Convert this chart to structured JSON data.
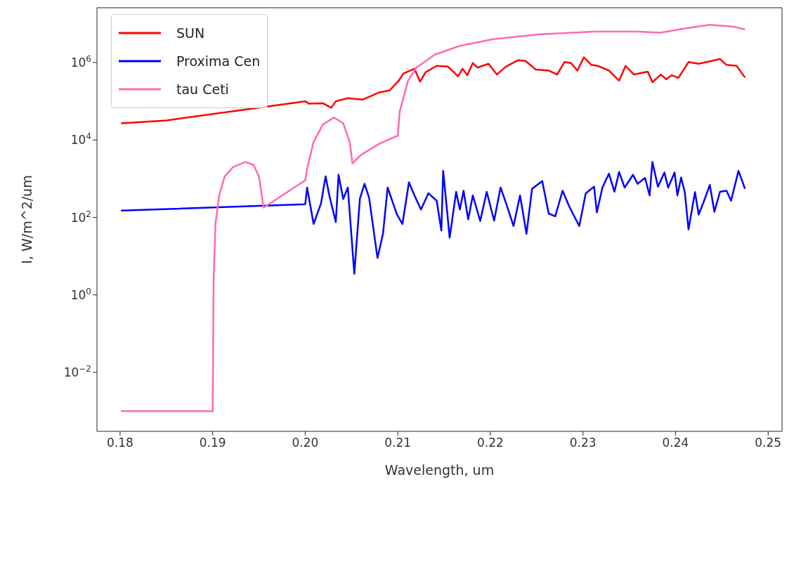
{
  "chart_data": {
    "type": "line",
    "xlabel": "Wavelength, um",
    "ylabel": "I, W/m^2/um",
    "log": "y",
    "legend": "top left",
    "grid": false,
    "marker": "none",
    "line_style": "solid",
    "xlim": [
      0.1775,
      0.2515
    ],
    "ylim": [
      0.0003,
      26000000
    ],
    "xticks": [
      {
        "value": 0.18,
        "label": "0.18"
      },
      {
        "value": 0.19,
        "label": "0.19"
      },
      {
        "value": 0.2,
        "label": "0.20"
      },
      {
        "value": 0.21,
        "label": "0.21"
      },
      {
        "value": 0.22,
        "label": "0.22"
      },
      {
        "value": 0.23,
        "label": "0.23"
      },
      {
        "value": 0.24,
        "label": "0.24"
      },
      {
        "value": 0.25,
        "label": "0.25"
      }
    ],
    "yticks": [
      {
        "value": 0.01,
        "label": "10$^{−2}$"
      },
      {
        "value": 1,
        "label": "10$^{0}$"
      },
      {
        "value": 100,
        "label": "10$^{2}$"
      },
      {
        "value": 10000,
        "label": "10$^{4}$"
      },
      {
        "value": 1000000,
        "label": "10$^{6}$"
      }
    ],
    "series": [
      {
        "name": "SUN",
        "color": "#ff0000",
        "x": [
          0.1801,
          0.185,
          0.2,
          0.2004,
          0.2019,
          0.2028,
          0.2033,
          0.2046,
          0.2062,
          0.208,
          0.2091,
          0.2101,
          0.2106,
          0.2118,
          0.2124,
          0.213,
          0.2142,
          0.2154,
          0.2165,
          0.217,
          0.2175,
          0.2181,
          0.2186,
          0.2198,
          0.2207,
          0.2217,
          0.223,
          0.2238,
          0.2249,
          0.2263,
          0.2272,
          0.228,
          0.2287,
          0.2294,
          0.2301,
          0.2309,
          0.2316,
          0.2328,
          0.2339,
          0.2346,
          0.2355,
          0.237,
          0.2375,
          0.2384,
          0.239,
          0.2396,
          0.2403,
          0.2414,
          0.2425,
          0.2439,
          0.2448,
          0.2455,
          0.2466,
          0.2475
        ],
        "values": [
          27000,
          32000,
          100000,
          87000,
          89000,
          68000,
          100000,
          120000,
          110000,
          170000,
          190000,
          340000,
          520000,
          690000,
          320000,
          560000,
          820000,
          790000,
          440000,
          690000,
          470000,
          970000,
          740000,
          930000,
          490000,
          790000,
          1150000,
          1100000,
          660000,
          620000,
          490000,
          1030000,
          970000,
          620000,
          1360000,
          870000,
          820000,
          620000,
          340000,
          820000,
          490000,
          580000,
          310000,
          490000,
          370000,
          470000,
          400000,
          1030000,
          930000,
          1100000,
          1230000,
          870000,
          820000,
          410000
        ]
      },
      {
        "name": "Proxima Cen",
        "color": "#0000ff",
        "x": [
          0.1801,
          0.2,
          0.2002,
          0.2009,
          0.2017,
          0.2022,
          0.2026,
          0.2033,
          0.2036,
          0.2041,
          0.2046,
          0.2053,
          0.2059,
          0.2064,
          0.2069,
          0.2078,
          0.2084,
          0.2089,
          0.2099,
          0.2105,
          0.2112,
          0.2118,
          0.2125,
          0.2133,
          0.2142,
          0.2147,
          0.2149,
          0.2156,
          0.2163,
          0.2167,
          0.2171,
          0.2176,
          0.2181,
          0.2189,
          0.2196,
          0.2204,
          0.2211,
          0.2217,
          0.2225,
          0.2232,
          0.2239,
          0.2245,
          0.2256,
          0.2263,
          0.227,
          0.2278,
          0.2285,
          0.2296,
          0.2303,
          0.2312,
          0.2315,
          0.2321,
          0.2328,
          0.2334,
          0.2339,
          0.2345,
          0.2354,
          0.2359,
          0.2367,
          0.2372,
          0.2375,
          0.2381,
          0.2388,
          0.2392,
          0.2399,
          0.2402,
          0.2406,
          0.241,
          0.2414,
          0.2421,
          0.2425,
          0.2432,
          0.2437,
          0.2442,
          0.2448,
          0.2455,
          0.246,
          0.2468,
          0.2475
        ],
        "values": [
          150,
          220,
          590,
          68,
          230,
          1150,
          370,
          76,
          1260,
          300,
          590,
          3.5,
          300,
          740,
          320,
          9,
          38,
          590,
          120,
          68,
          810,
          370,
          160,
          420,
          270,
          46,
          1600,
          30,
          460,
          160,
          490,
          89,
          370,
          81,
          460,
          83,
          590,
          230,
          60,
          370,
          38,
          550,
          870,
          126,
          107,
          490,
          195,
          60,
          420,
          620,
          135,
          590,
          1350,
          460,
          1500,
          590,
          1260,
          740,
          1050,
          370,
          2700,
          620,
          1450,
          590,
          1450,
          370,
          1070,
          450,
          49,
          450,
          118,
          320,
          690,
          140,
          460,
          490,
          270,
          1600,
          550
        ]
      },
      {
        "name": "tau Ceti",
        "color": "#ff69b4",
        "x": [
          0.1801,
          0.19,
          0.1901,
          0.1903,
          0.1907,
          0.1913,
          0.1922,
          0.1935,
          0.1944,
          0.195,
          0.1955,
          0.1971,
          0.1988,
          0.2,
          0.2002,
          0.2009,
          0.2019,
          0.2031,
          0.2041,
          0.2048,
          0.2051,
          0.206,
          0.208,
          0.21,
          0.2102,
          0.2111,
          0.212,
          0.214,
          0.2167,
          0.2203,
          0.2251,
          0.2312,
          0.2359,
          0.2384,
          0.2408,
          0.2437,
          0.2461,
          0.2475
        ],
        "values": [
          0.001,
          0.001,
          2.5,
          68,
          370,
          1150,
          2000,
          2700,
          2300,
          1150,
          180,
          320,
          590,
          910,
          1800,
          9000,
          25000,
          38000,
          27000,
          9000,
          2500,
          4100,
          8000,
          13000,
          54000,
          340000,
          740000,
          1600000,
          2700000,
          4000000,
          5300000,
          6300000,
          6300000,
          5900000,
          7400000,
          9400000,
          8500000,
          7200000
        ]
      }
    ]
  }
}
